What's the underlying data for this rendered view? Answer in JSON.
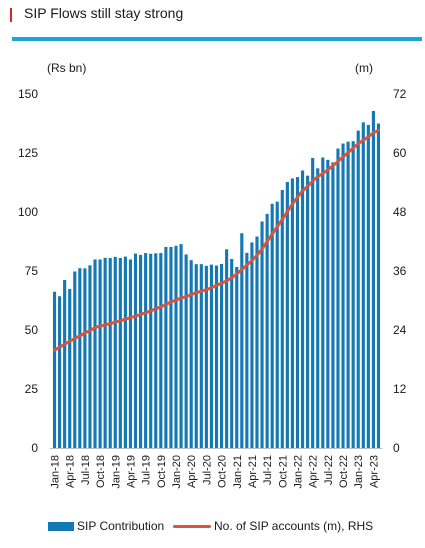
{
  "title": "SIP Flows still stay strong",
  "colors": {
    "accent": "#d9262e",
    "rule": "#1aa6d6",
    "bars": "#1478b4",
    "line": "#d9543c"
  },
  "chart_data": {
    "type": "bar+line",
    "title": "SIP Flows still stay strong",
    "left_axis_label": "(Rs bn)",
    "right_axis_label": "(m)",
    "ylim": [
      0,
      150
    ],
    "y2lim": [
      0,
      72
    ],
    "yticks": [
      0,
      25,
      50,
      75,
      100,
      125,
      150
    ],
    "y2ticks": [
      0,
      12,
      24,
      36,
      48,
      60,
      72
    ],
    "x_tick_labels": [
      "Jan-18",
      "Apr-18",
      "Jul-18",
      "Oct-18",
      "Jan-19",
      "Apr-19",
      "Jul-19",
      "Oct-19",
      "Jan-20",
      "Apr-20",
      "Jul-20",
      "Oct-20",
      "Jan-21",
      "Apr-21",
      "Jul-21",
      "Oct-21",
      "Jan-22",
      "Apr-22",
      "Jul-22",
      "Oct-22",
      "Jan-23",
      "Apr-23"
    ],
    "months_start": "Jan-18",
    "series": [
      {
        "name": "SIP Contribution",
        "type": "bar",
        "axis": "left",
        "values": [
          66.2,
          64.3,
          71.2,
          67.4,
          74.8,
          76.2,
          76.1,
          77.4,
          79.9,
          79.9,
          80.6,
          80.5,
          81.0,
          80.5,
          81.1,
          79.9,
          82.4,
          81.8,
          82.6,
          82.3,
          82.5,
          82.6,
          85.2,
          85.2,
          85.7,
          86.4,
          82.0,
          79.6,
          77.9,
          77.9,
          77.2,
          77.7,
          77.3,
          78.0,
          84.2,
          80.1,
          76.7,
          91.0,
          82.7,
          87.1,
          89.6,
          96.0,
          99.2,
          103.5,
          104.4,
          109.3,
          112.7,
          114.2,
          114.8,
          117.6,
          115.4,
          122.9,
          118.5,
          123.1,
          122.1,
          121.0,
          126.9,
          129.0,
          129.8,
          130.0,
          134.5,
          138.0,
          136.9,
          142.8,
          137.5
        ]
      },
      {
        "name": "No. of SIP accounts (m), RHS",
        "type": "line",
        "axis": "right",
        "values": [
          19.9,
          20.5,
          21.1,
          21.7,
          22.3,
          22.8,
          23.4,
          23.9,
          24.5,
          24.8,
          25.0,
          25.3,
          25.6,
          25.9,
          26.2,
          26.5,
          26.8,
          27.2,
          27.5,
          27.9,
          28.3,
          28.7,
          29.2,
          29.7,
          30.1,
          30.5,
          30.8,
          31.2,
          31.6,
          31.9,
          32.2,
          32.6,
          33.1,
          33.5,
          34.0,
          34.6,
          35.4,
          36.3,
          37.2,
          38.1,
          39.2,
          40.5,
          42.0,
          43.5,
          45.0,
          46.5,
          48.1,
          49.6,
          51.0,
          52.3,
          53.2,
          54.3,
          55.2,
          55.8,
          56.6,
          57.4,
          58.3,
          59.2,
          60.1,
          61.0,
          61.9,
          62.6,
          63.3,
          64.1,
          64.6
        ]
      }
    ]
  },
  "legend": {
    "bars_label": "SIP Contribution",
    "line_label": "No. of SIP accounts (m), RHS"
  }
}
